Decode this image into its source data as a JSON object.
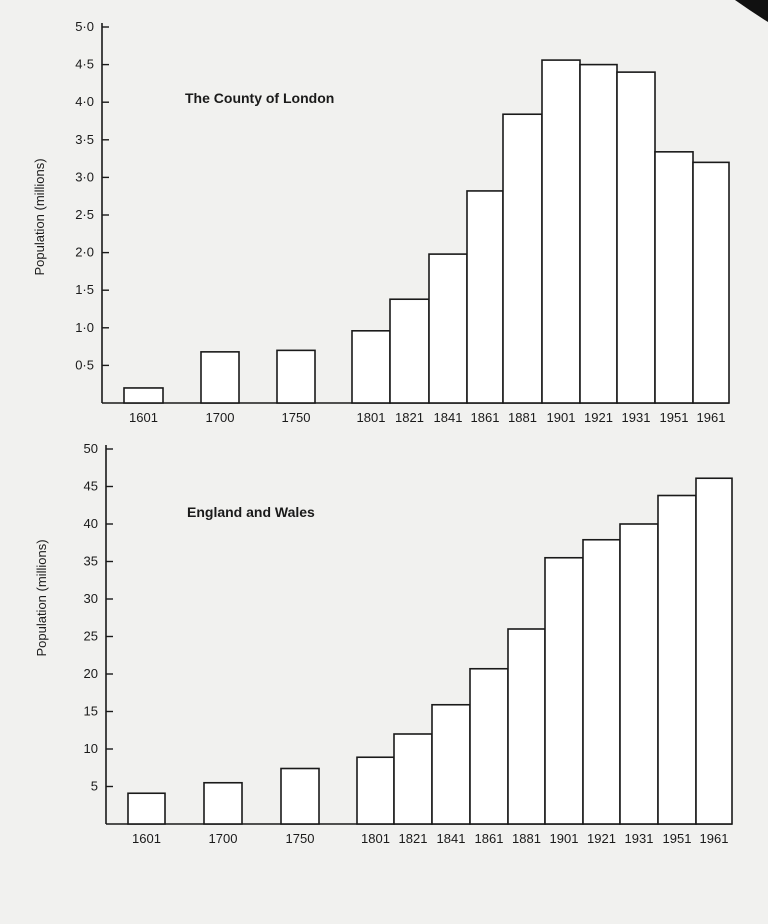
{
  "chart_data": [
    {
      "type": "bar",
      "title": "The County of London",
      "ylabel": "Population (millions)",
      "xlabel": "",
      "ylim": [
        0,
        5.0
      ],
      "yticks": [
        "0·5",
        "1·0",
        "1·5",
        "2·0",
        "2·5",
        "3·0",
        "3·5",
        "4·0",
        "4·5",
        "5·0"
      ],
      "ytick_values": [
        0.5,
        1.0,
        1.5,
        2.0,
        2.5,
        3.0,
        3.5,
        4.0,
        4.5,
        5.0
      ],
      "categories": [
        "1601",
        "1700",
        "1750",
        "1801",
        "1821",
        "1841",
        "1861",
        "1881",
        "1901",
        "1921",
        "1931",
        "1951",
        "1961"
      ],
      "values": [
        0.2,
        0.68,
        0.7,
        0.96,
        1.38,
        1.98,
        2.82,
        3.84,
        4.56,
        4.5,
        4.4,
        3.34,
        3.2
      ]
    },
    {
      "type": "bar",
      "title": "England and Wales",
      "ylabel": "Population (millions)",
      "xlabel": "",
      "ylim": [
        0,
        50
      ],
      "yticks": [
        "5",
        "10",
        "15",
        "20",
        "25",
        "30",
        "35",
        "40",
        "45",
        "50"
      ],
      "ytick_values": [
        5,
        10,
        15,
        20,
        25,
        30,
        35,
        40,
        45,
        50
      ],
      "categories": [
        "1601",
        "1700",
        "1750",
        "1801",
        "1821",
        "1841",
        "1861",
        "1881",
        "1901",
        "1921",
        "1931",
        "1951",
        "1961"
      ],
      "values": [
        4.1,
        5.5,
        7.4,
        8.9,
        12.0,
        15.9,
        20.7,
        26.0,
        35.5,
        37.9,
        40.0,
        43.8,
        46.1
      ]
    }
  ]
}
